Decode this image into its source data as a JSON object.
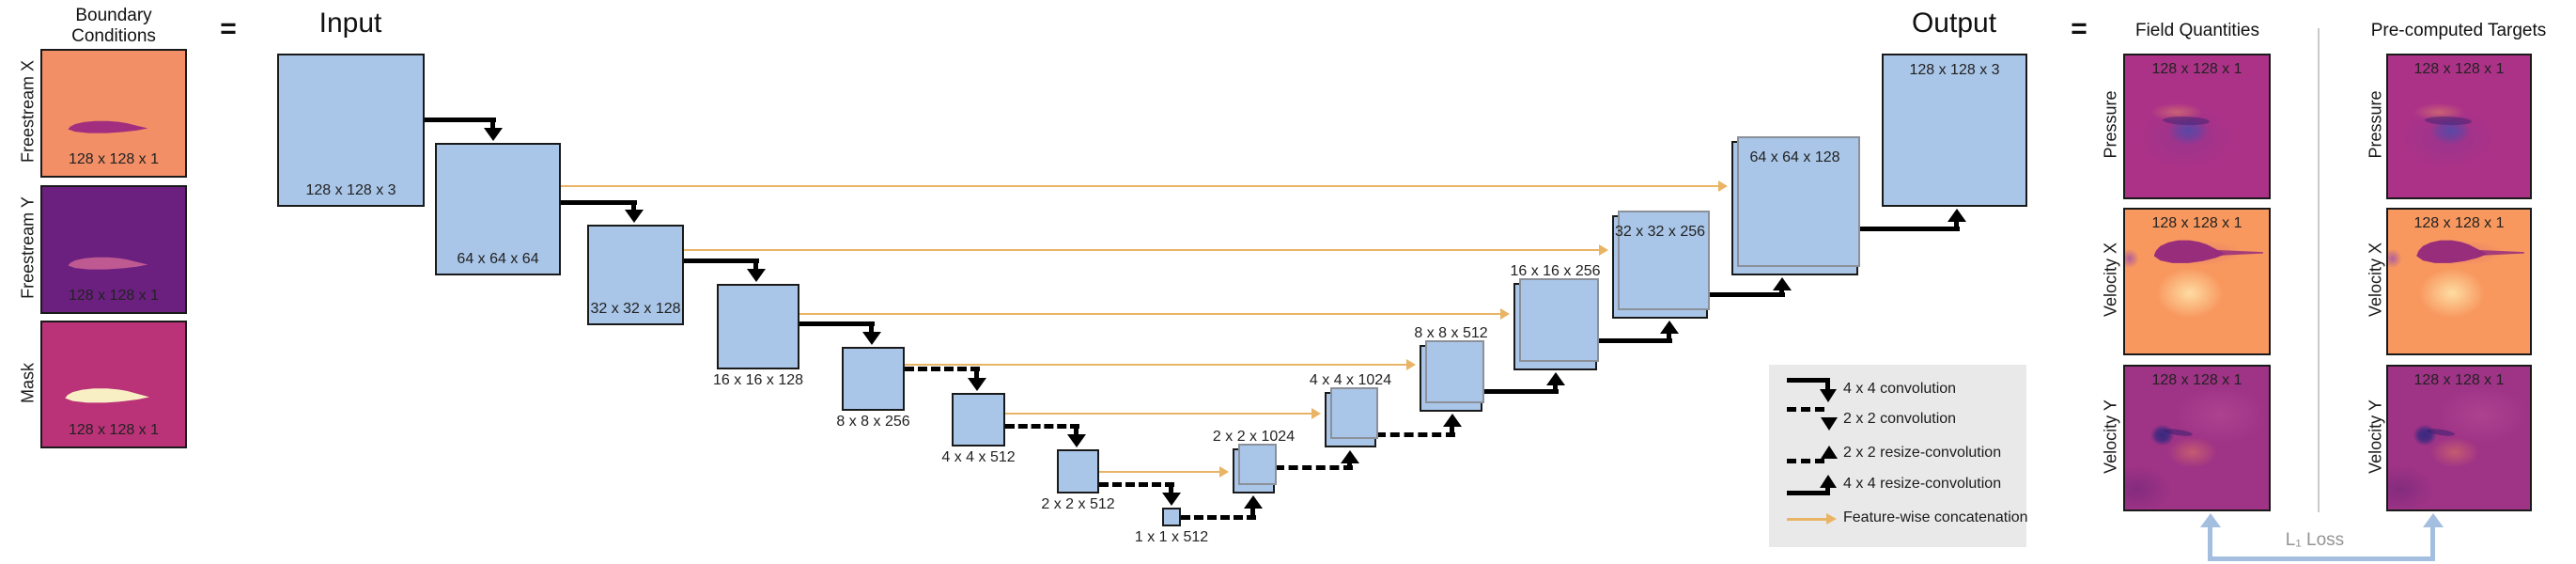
{
  "boundary": {
    "title_line1": "Boundary",
    "title_line2": "Conditions",
    "rows": [
      {
        "label": "Freestream X",
        "dim": "128 x 128 x 1"
      },
      {
        "label": "Freestream Y",
        "dim": "128 x 128 x 1"
      },
      {
        "label": "Mask",
        "dim": "128 x 128 x 1"
      }
    ]
  },
  "equals_left": "=",
  "equals_right": "=",
  "unet": {
    "input_title": "Input",
    "output_title": "Output",
    "blocks": [
      {
        "dim": "128 x 128 x 3"
      },
      {
        "dim": "64 x 64 x 64"
      },
      {
        "dim": "32 x 32 x 128"
      },
      {
        "dim": "16 x 16 x 128"
      },
      {
        "dim": "8 x 8 x 256"
      },
      {
        "dim": "4 x 4 x 512"
      },
      {
        "dim": "2 x 2 x 512"
      },
      {
        "dim": "1 x 1 x 512"
      },
      {
        "dim": "2 x 2 x 1024"
      },
      {
        "dim": "4 x 4 x 1024"
      },
      {
        "dim": "8 x 8 x 512"
      },
      {
        "dim": "16 x 16 x 256"
      },
      {
        "dim": "32 x 32 x 256"
      },
      {
        "dim": "64 x 64 x 128"
      },
      {
        "dim": "128 x 128 x 3"
      }
    ]
  },
  "legend": {
    "items": [
      "4 x 4 convolution",
      "2 x 2 convolution",
      "2 x 2 resize-convolution",
      "4 x 4 resize-convolution",
      "Feature-wise concatenation"
    ]
  },
  "results": {
    "field_title": "Field Quantities",
    "target_title": "Pre-computed Targets",
    "rows": [
      {
        "label": "Pressure",
        "dim": "128 x 128 x 1"
      },
      {
        "label": "Velocity X",
        "dim": "128 x 128 x 1"
      },
      {
        "label": "Velocity Y",
        "dim": "128 x 128 x 1"
      }
    ],
    "loss_label": "L₁ Loss"
  },
  "colors": {
    "block_fill": "#a9c6e8",
    "concat_orange": "#e9b465",
    "loss_blue": "#a3bedf",
    "legend_bg": "#e9e9e9"
  }
}
